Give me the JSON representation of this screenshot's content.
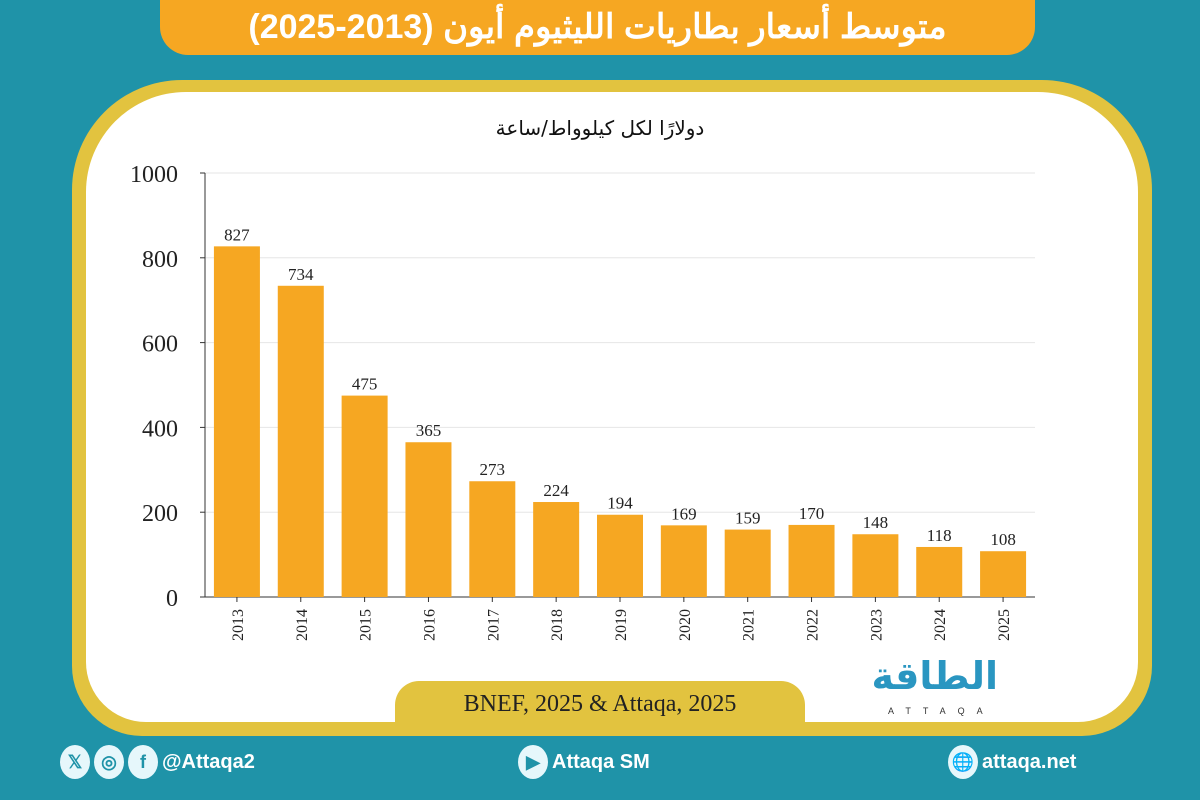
{
  "header": {
    "title": "متوسط أسعار بطاريات الليثيوم أيون (2013-2025)"
  },
  "chart_data": {
    "type": "bar",
    "title": "متوسط أسعار بطاريات الليثيوم أيون (2013-2025)",
    "ylabel": "دولارًا لكل كيلوواط/ساعة",
    "xlabel": "",
    "categories": [
      "2013",
      "2014",
      "2015",
      "2016",
      "2017",
      "2018",
      "2019",
      "2020",
      "2021",
      "2022",
      "2023",
      "2024",
      "2025"
    ],
    "values": [
      827,
      734,
      475,
      365,
      273,
      224,
      194,
      169,
      159,
      170,
      148,
      118,
      108
    ],
    "ylim": [
      0,
      1000
    ],
    "yticks": [
      "0",
      "200",
      "400",
      "600",
      "800",
      "1000"
    ],
    "grid": true,
    "bar_color": "#f6a722",
    "data_labels": true
  },
  "source": "BNEF, 2025 & Attaqa, 2025",
  "logo": {
    "ar": "الطاقة",
    "en": "ATTAQA"
  },
  "footer": {
    "social": "@Attaqa2",
    "youtube": "Attaqa SM",
    "website": "attaqa.net"
  },
  "colors": {
    "background": "#1f93a8",
    "accent": "#f6a722",
    "frame": "#e2c33f"
  }
}
